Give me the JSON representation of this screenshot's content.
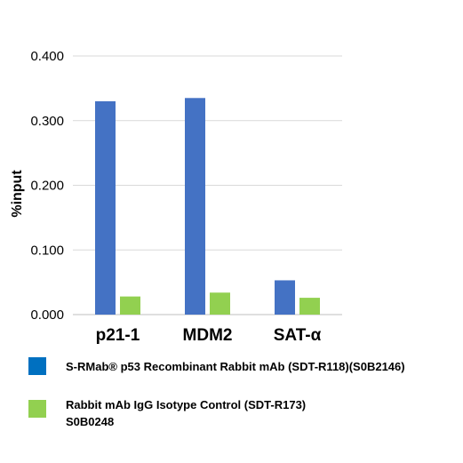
{
  "chart_data": {
    "type": "bar",
    "categories": [
      "p21-1",
      "MDM2",
      "SAT-α"
    ],
    "series": [
      {
        "name": "S-RMab® p53 Recombinant Rabbit mAb (SDT-R118)(S0B2146)",
        "values": [
          0.33,
          0.335,
          0.053
        ],
        "color": "#4472C4"
      },
      {
        "name": "Rabbit mAb IgG Isotype Control (SDT-R173) S0B0248",
        "name_lines": [
          "Rabbit mAb IgG Isotype Control (SDT-R173)",
          "S0B0248"
        ],
        "values": [
          0.028,
          0.034,
          0.026
        ],
        "color": "#92D050"
      }
    ],
    "yticks": [
      "0.000",
      "0.100",
      "0.200",
      "0.300",
      "0.400"
    ],
    "ylim": [
      0,
      0.4
    ],
    "ylabel": "%input",
    "grid": true,
    "legend_position": "bottom"
  },
  "legend_swatch_colors": [
    "#0070C0",
    "#92D050"
  ]
}
